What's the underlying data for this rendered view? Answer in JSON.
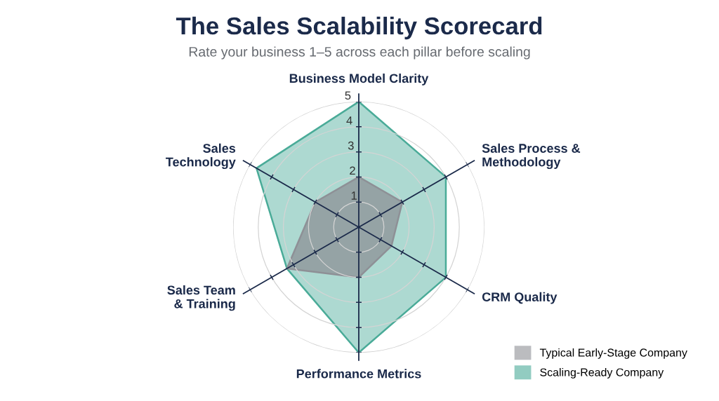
{
  "chart_data": {
    "type": "radar",
    "title": "The Sales Scalability Scorecard",
    "subtitle": "Rate your business 1–5 across each pillar before scaling",
    "categories": [
      "Business Model Clarity",
      "Sales Process &\nMethodology",
      "CRM Quality",
      "Performance Metrics",
      "Sales Team\n& Training",
      "Sales\nTechnology"
    ],
    "series": [
      {
        "name": "Scaling-Ready Company",
        "color": "#4aab98",
        "values": [
          5,
          4,
          4,
          5,
          3.3,
          4.7
        ]
      },
      {
        "name": "Typical Early-Stage Company",
        "color": "#8e9096",
        "values": [
          2,
          2,
          1.5,
          2,
          3.3,
          2
        ]
      }
    ],
    "ylim": [
      0,
      5
    ],
    "yticks": [
      1,
      2,
      3,
      4,
      5
    ],
    "grid": true,
    "legend": "bottom right"
  }
}
